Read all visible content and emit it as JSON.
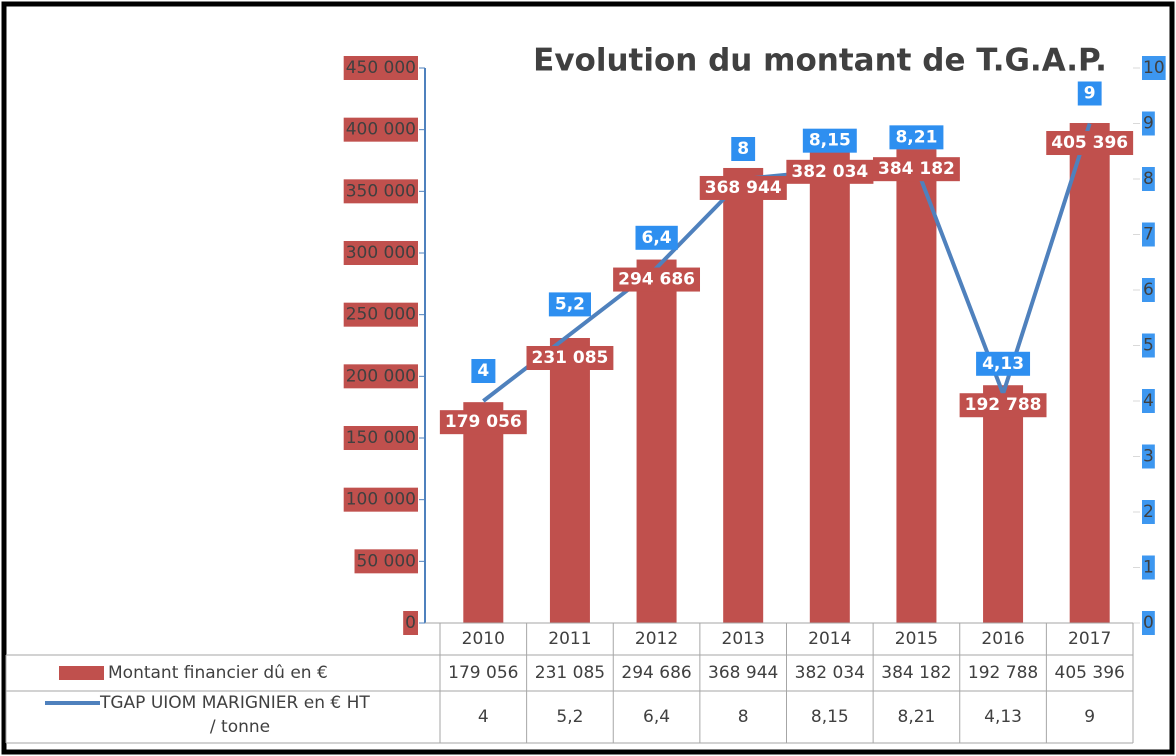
{
  "chart_data": {
    "type": "bar_line",
    "title": "Evolution du montant de T.G.A.P.",
    "categories": [
      "2010",
      "2011",
      "2012",
      "2013",
      "2014",
      "2015",
      "2016",
      "2017"
    ],
    "series": [
      {
        "name": "Montant financier dû en €",
        "color": "#c0504d",
        "values": [
          179056,
          231085,
          294686,
          368944,
          382034,
          384182,
          192788,
          405396
        ],
        "value_labels": [
          "179 056",
          "231 085",
          "294 686",
          "368 944",
          "382 034",
          "384 182",
          "192 788",
          "405 396"
        ]
      },
      {
        "name": "TGAP UIOM MARIGNIER en € HT / tonne",
        "color": "#4f81bd",
        "axis": "y2",
        "values": [
          4,
          5.2,
          6.4,
          8,
          8.15,
          8.21,
          4.13,
          9
        ],
        "value_labels": [
          "4",
          "5,2",
          "6,4",
          "8",
          "8,15",
          "8,21",
          "4,13",
          "9"
        ]
      }
    ],
    "ylim": [
      0,
      450000
    ],
    "yticks": [
      0,
      {
        "value": 50000,
        "label": "50 000"
      },
      {
        "value": 100000,
        "label": "100 000"
      },
      {
        "value": 150000,
        "label": "150 000"
      },
      {
        "value": 200000,
        "label": "200 000"
      },
      {
        "value": 250000,
        "label": "250 000"
      },
      {
        "value": 300000,
        "label": "300 000"
      },
      {
        "value": 350000,
        "label": "350 000"
      },
      {
        "value": 400000,
        "label": "400 000"
      },
      {
        "value": 450000,
        "label": "450 000"
      }
    ],
    "y2lim": [
      0,
      10
    ],
    "y2ticks": [
      0,
      1,
      2,
      3,
      4,
      5,
      6,
      7,
      8,
      9,
      10
    ]
  }
}
